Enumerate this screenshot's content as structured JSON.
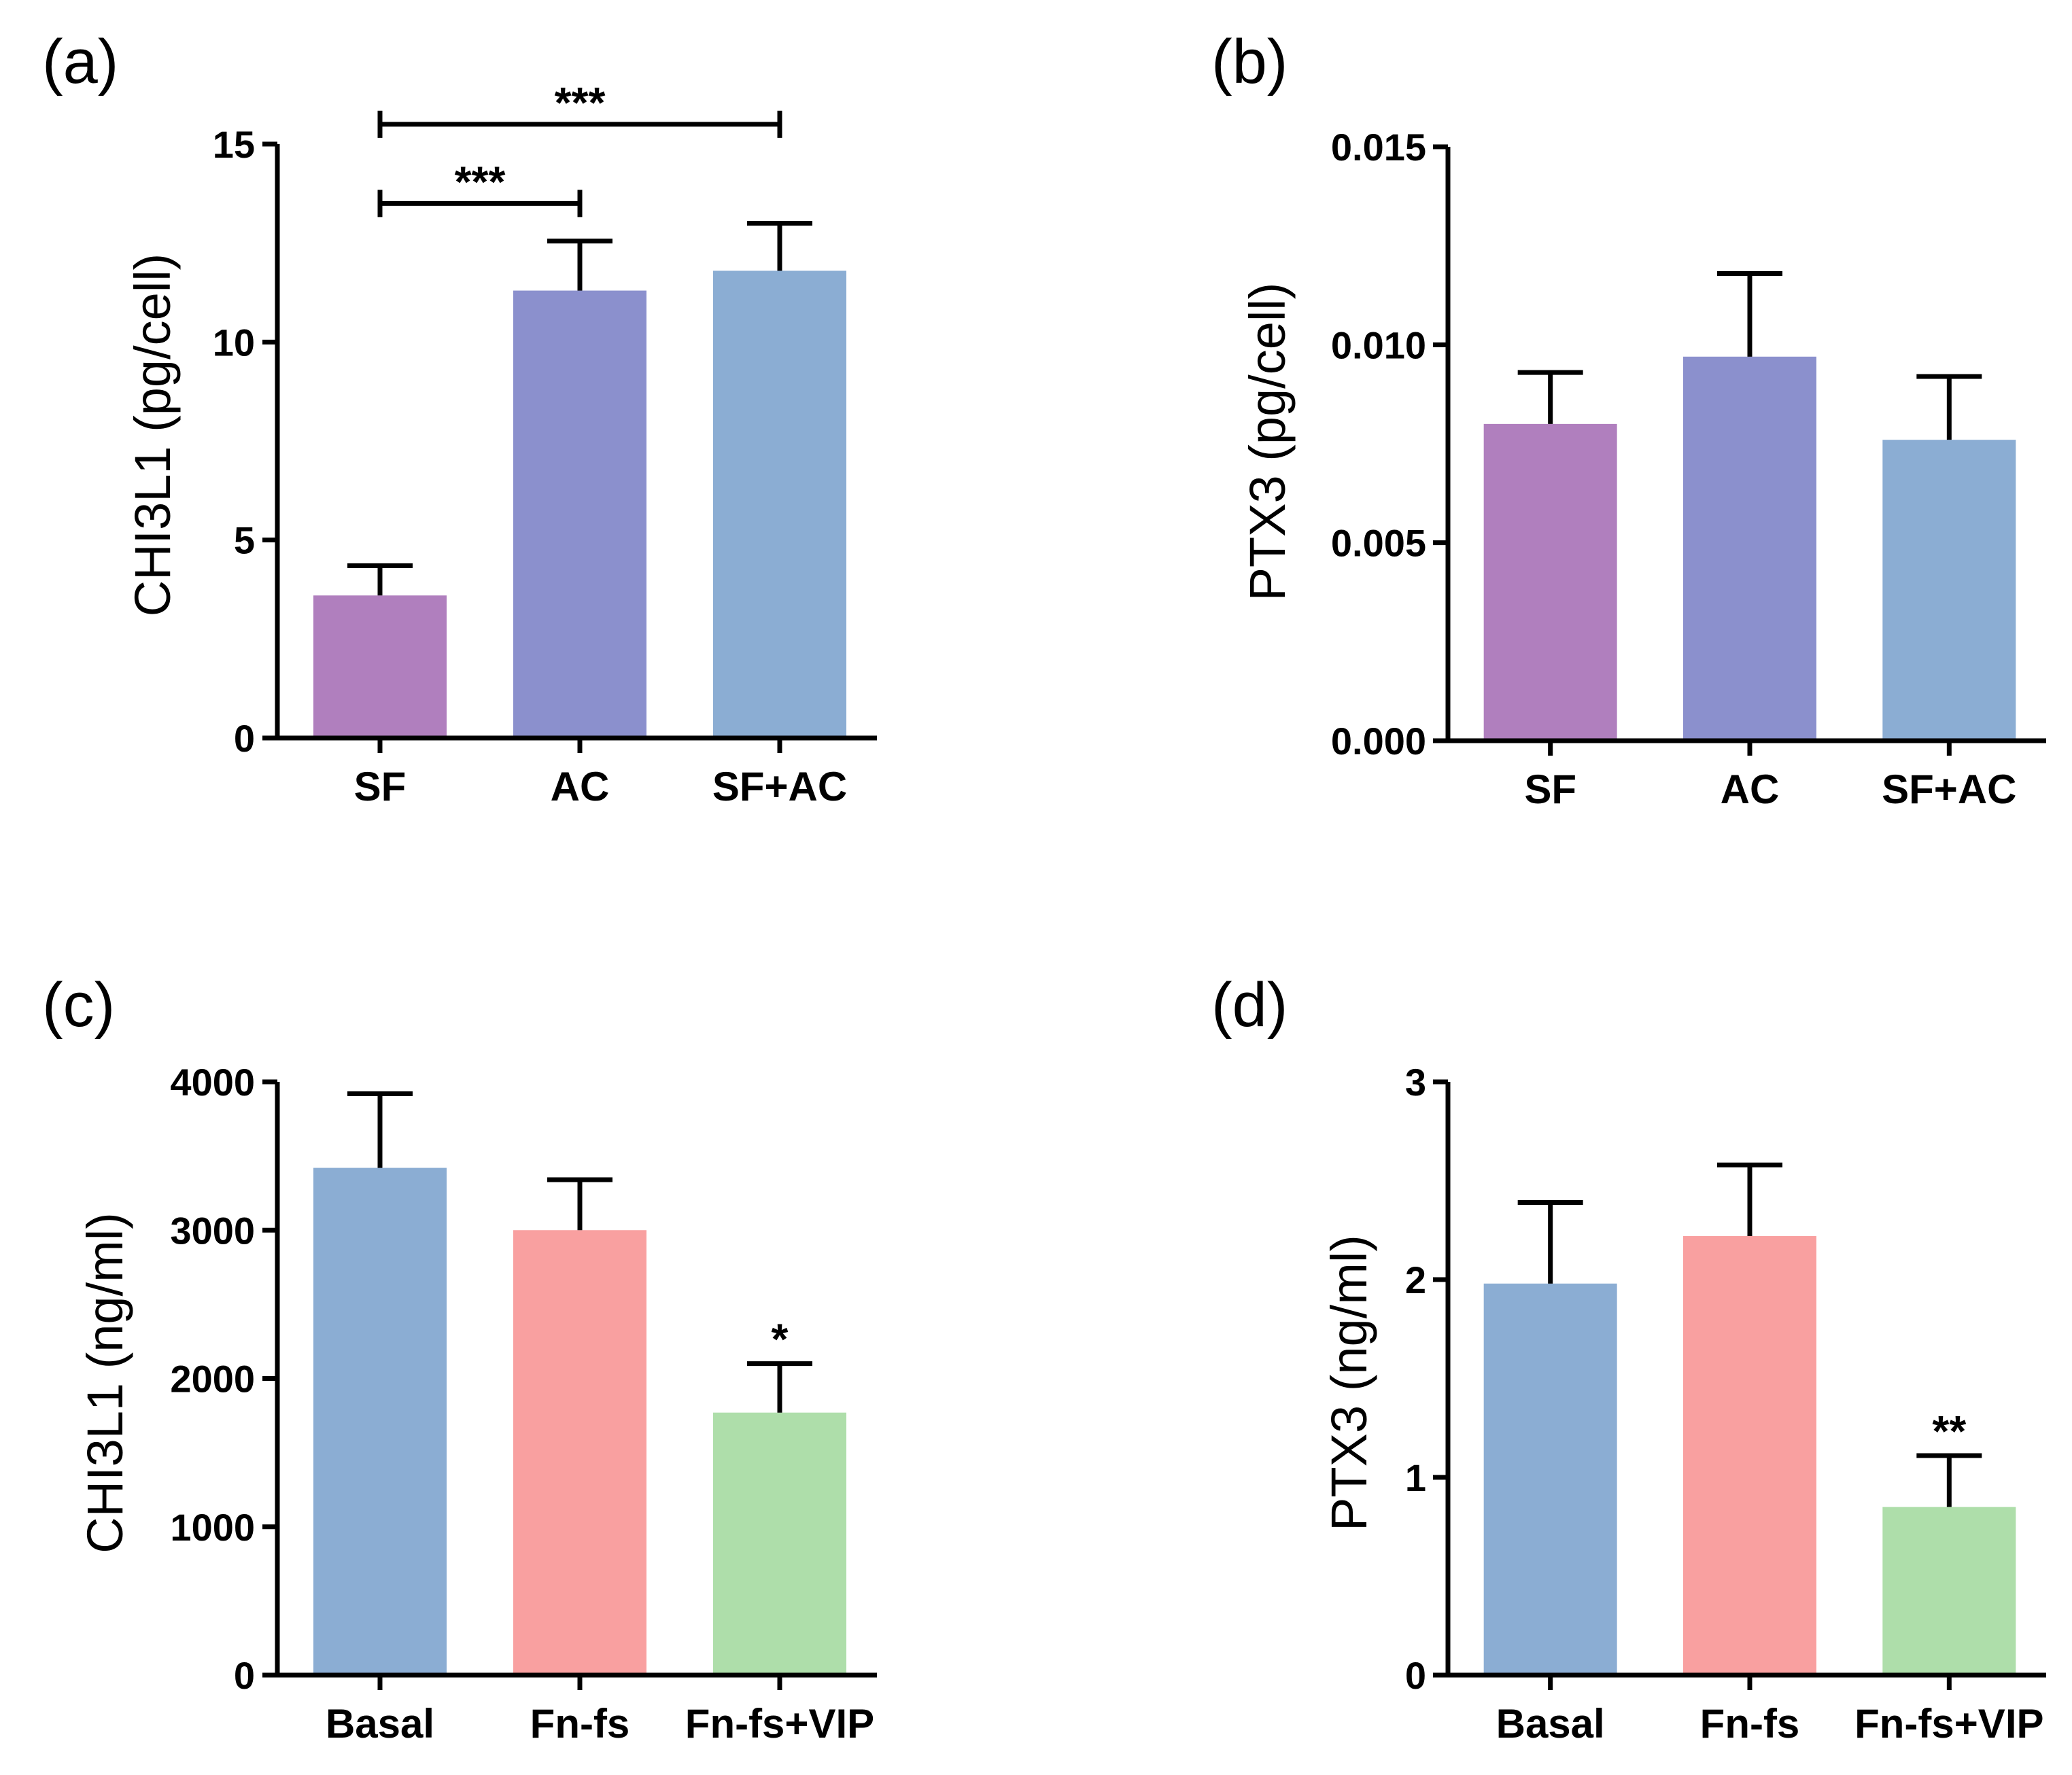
{
  "chart_data": [
    {
      "panel": "(a)",
      "type": "bar",
      "ylabel": "CHI3L1 (pg/cell)",
      "ylim": [
        0,
        15
      ],
      "yticks": [
        "0",
        "5",
        "10",
        "15"
      ],
      "tick_values": [
        0,
        5,
        10,
        15
      ],
      "categories": [
        "SF",
        "AC",
        "SF+AC"
      ],
      "values": [
        3.6,
        11.3,
        11.8
      ],
      "errors": [
        0.75,
        1.25,
        1.2
      ],
      "colors": [
        "#b07fbe",
        "#8b90cd",
        "#8badd3"
      ],
      "significance": [
        {
          "from": 0,
          "to": 1,
          "label": "***",
          "value": 13.5
        },
        {
          "from": 0,
          "to": 2,
          "label": "***",
          "value": 15.5
        }
      ]
    },
    {
      "panel": "(b)",
      "type": "bar",
      "ylabel": "PTX3 (pg/cell)",
      "ylim": [
        0,
        0.015
      ],
      "yticks": [
        "0.000",
        "0.005",
        "0.010",
        "0.015"
      ],
      "tick_values": [
        0,
        0.005,
        0.01,
        0.015
      ],
      "categories": [
        "SF",
        "AC",
        "SF+AC"
      ],
      "values": [
        0.008,
        0.0097,
        0.0076
      ],
      "errors": [
        0.0013,
        0.0021,
        0.0016
      ],
      "colors": [
        "#b07fbe",
        "#8b90cd",
        "#8badd3"
      ],
      "significance": []
    },
    {
      "panel": "(c)",
      "type": "bar",
      "ylabel": "CHI3L1 (ng/ml)",
      "ylim": [
        0,
        4000
      ],
      "yticks": [
        "0",
        "1000",
        "2000",
        "3000",
        "4000"
      ],
      "tick_values": [
        0,
        1000,
        2000,
        3000,
        4000
      ],
      "categories": [
        "Basal",
        "Fn-fs",
        "Fn-fs+VIP"
      ],
      "values": [
        3420,
        3000,
        1770
      ],
      "errors": [
        500,
        340,
        330
      ],
      "colors": [
        "#8badd3",
        "#f9a0a0",
        "#aedeaa"
      ],
      "significance": [
        {
          "at": 2,
          "label": "*"
        }
      ]
    },
    {
      "panel": "(d)",
      "type": "bar",
      "ylabel": "PTX3 (ng/ml)",
      "ylim": [
        0,
        3
      ],
      "yticks": [
        "0",
        "1",
        "2",
        "3"
      ],
      "tick_values": [
        0,
        1,
        2,
        3
      ],
      "categories": [
        "Basal",
        "Fn-fs",
        "Fn-fs+VIP"
      ],
      "values": [
        1.98,
        2.22,
        0.85
      ],
      "errors": [
        0.41,
        0.36,
        0.26
      ],
      "colors": [
        "#8badd3",
        "#f9a0a0",
        "#aedeaa"
      ],
      "significance": [
        {
          "at": 2,
          "label": "**"
        }
      ]
    }
  ]
}
